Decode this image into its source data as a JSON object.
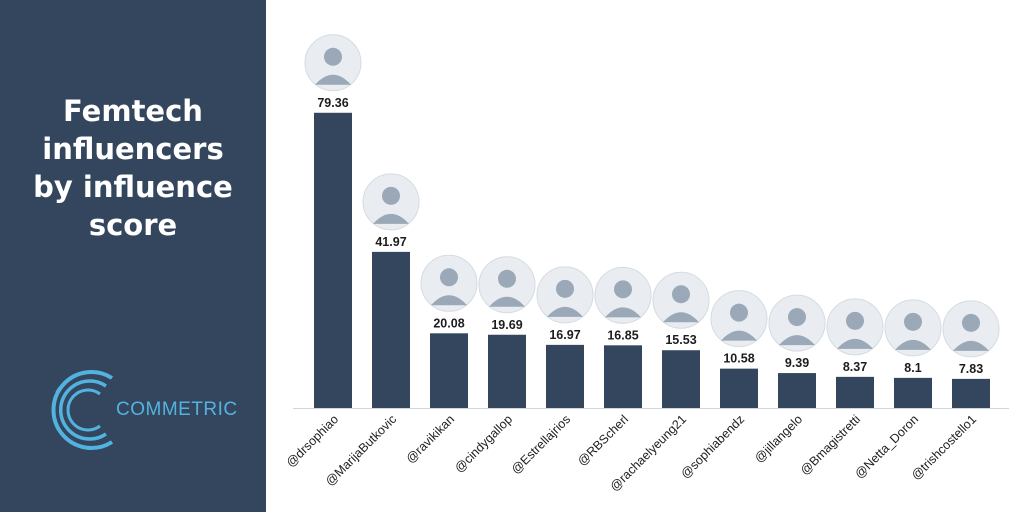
{
  "title": "Femtech influencers by influence score",
  "brand": {
    "logo_text": "COMMETRIC"
  },
  "colors": {
    "panel": "#34465d",
    "bar": "#34465d",
    "accent": "#53b3e0",
    "title_text": "#ffffff",
    "label_text": "#1d1d1d"
  },
  "chart_data": {
    "type": "bar",
    "title": "Femtech influencers by influence score",
    "xlabel": "",
    "ylabel": "",
    "grid": false,
    "legend": "none",
    "ylim": [
      0,
      80
    ],
    "categories": [
      "@drsophiao",
      "@MarijaButkovic",
      "@ravikikan",
      "@cindygallop",
      "@Estrellajrios",
      "@RBScherl",
      "@rachaelyeung21",
      "@sophiabendz",
      "@jillangelo",
      "@Bmagistretti",
      "@Netta_Doron",
      "@trishcostello1"
    ],
    "values": [
      79.36,
      41.97,
      20.08,
      19.69,
      16.97,
      16.85,
      15.53,
      10.58,
      9.39,
      8.37,
      8.1,
      7.83
    ],
    "value_labels": [
      "79.36",
      "41.97",
      "20.08",
      "19.69",
      "16.97",
      "16.85",
      "15.53",
      "10.58",
      "9.39",
      "8.37",
      "8.1",
      "7.83"
    ]
  }
}
